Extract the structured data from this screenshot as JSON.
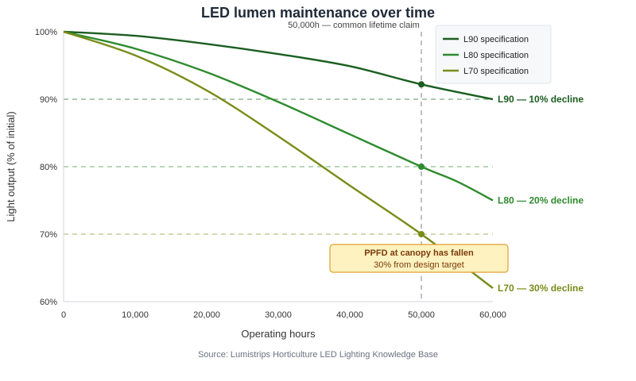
{
  "chart_data": {
    "type": "line",
    "title": "LED lumen maintenance over time",
    "xlabel": "Operating hours",
    "ylabel": "Light output (% of initial)",
    "xlim": [
      0,
      60000
    ],
    "ylim": [
      60,
      100
    ],
    "x_ticks": [
      0,
      10000,
      20000,
      30000,
      40000,
      50000,
      60000
    ],
    "x_tick_labels": [
      "0",
      "10,000",
      "20,000",
      "30,000",
      "40,000",
      "50,000",
      "60,000"
    ],
    "y_ticks": [
      60,
      70,
      80,
      90,
      100
    ],
    "y_tick_labels": [
      "60%",
      "70%",
      "80%",
      "90%",
      "100%"
    ],
    "legend_position": "top-right",
    "grid": false,
    "series": [
      {
        "name": "L90 specification",
        "color": "#1b5e20",
        "x": [
          0,
          10000,
          20000,
          30000,
          40000,
          50000,
          60000
        ],
        "y": [
          100,
          99.4,
          98.2,
          96.7,
          94.9,
          92.2,
          90
        ],
        "end_label": "L90 — 10% decline"
      },
      {
        "name": "L80 specification",
        "color": "#2e8b2e",
        "x": [
          0,
          10000,
          20000,
          30000,
          40000,
          50000,
          55000,
          60000
        ],
        "y": [
          100,
          97.5,
          94,
          89.6,
          84.8,
          80,
          77.8,
          75
        ],
        "end_label": "L80 — 20% decline"
      },
      {
        "name": "L70 specification",
        "color": "#7a8c1a",
        "x": [
          0,
          10000,
          20000,
          30000,
          40000,
          50000,
          60000
        ],
        "y": [
          100,
          96.5,
          91.3,
          84.5,
          77.2,
          70,
          62
        ],
        "end_label": "L70 — 30% decline"
      }
    ],
    "reference_lines": {
      "horizontal": [
        {
          "y": 90,
          "color": "#1b5e20"
        },
        {
          "y": 80,
          "color": "#2e8b2e"
        },
        {
          "y": 70,
          "color": "#7a8c1a"
        }
      ],
      "vertical": {
        "x": 50000,
        "color": "#9e9e9e",
        "label": "50,000h — common lifetime claim"
      }
    },
    "markers": [
      {
        "x": 50000,
        "y": 92.2,
        "color": "#1b5e20"
      },
      {
        "x": 50000,
        "y": 80,
        "color": "#2e8b2e"
      },
      {
        "x": 50000,
        "y": 70,
        "color": "#7a8c1a"
      }
    ],
    "annotation": {
      "title": "PPFD at canopy has fallen",
      "subtitle": "30% from design target",
      "fill": "#fdf2c0",
      "stroke": "#e0a030"
    },
    "source": "Source: Lumistrips Horticulture LED Lighting Knowledge Base"
  }
}
